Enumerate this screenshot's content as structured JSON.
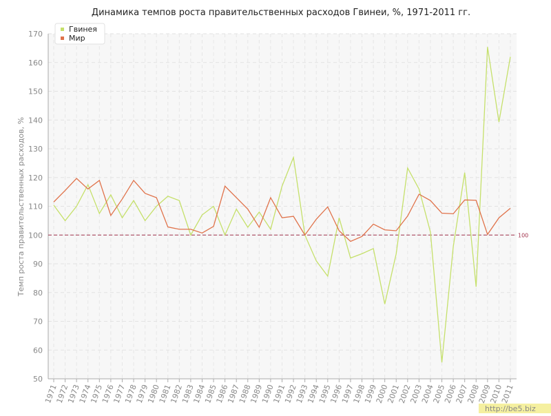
{
  "chart_data": {
    "type": "line",
    "title": "Динамика темпов роста правительственных расходов Гвинеи, %, 1971-2011 гг.",
    "y_label": "Темп роста правительственных расходов, %",
    "categories": [
      "1971",
      "1972",
      "1973",
      "1974",
      "1975",
      "1976",
      "1977",
      "1978",
      "1979",
      "1980",
      "1981",
      "1982",
      "1983",
      "1984",
      "1985",
      "1986",
      "1987",
      "1988",
      "1989",
      "1990",
      "1991",
      "1992",
      "1993",
      "1994",
      "1995",
      "1996",
      "1997",
      "1998",
      "1999",
      "2000",
      "2001",
      "2002",
      "2003",
      "2004",
      "2005",
      "2006",
      "2007",
      "2008",
      "2009",
      "2010",
      "2011"
    ],
    "series": [
      {
        "name": "Гвинея",
        "color": "#c5e06a",
        "values": [
          110.4,
          105,
          110,
          117.5,
          107.5,
          114,
          106,
          112,
          105,
          110,
          113.5,
          112,
          100,
          107,
          110,
          100,
          109,
          102.7,
          108,
          102,
          117,
          127,
          100,
          91,
          85.7,
          106,
          92,
          93.5,
          95.3,
          76,
          93.5,
          123.3,
          116,
          101,
          55.7,
          96,
          121.7,
          82,
          165.4,
          139.3,
          162
        ]
      },
      {
        "name": "Мир",
        "color": "#e0724a",
        "values": [
          111.5,
          115.5,
          119.7,
          116,
          119,
          106.8,
          112.5,
          119,
          114.5,
          113,
          102.8,
          102,
          102,
          100.7,
          103,
          117,
          113,
          109,
          102.7,
          113,
          106,
          106.5,
          100,
          105.5,
          109.8,
          101.5,
          97.8,
          99.5,
          103.8,
          101.8,
          101.5,
          106.6,
          114.2,
          112,
          107.6,
          107.4,
          112.2,
          112.1,
          100.2,
          106,
          109.3
        ]
      }
    ],
    "ylim": [
      50,
      170
    ],
    "yticks": [
      50,
      60,
      70,
      80,
      90,
      100,
      110,
      120,
      130,
      140,
      150,
      160,
      170
    ],
    "grid": true,
    "legend": "top-left",
    "reference_line": {
      "value": 100,
      "color": "#a0304a"
    },
    "watermark": "http://be5.biz"
  }
}
